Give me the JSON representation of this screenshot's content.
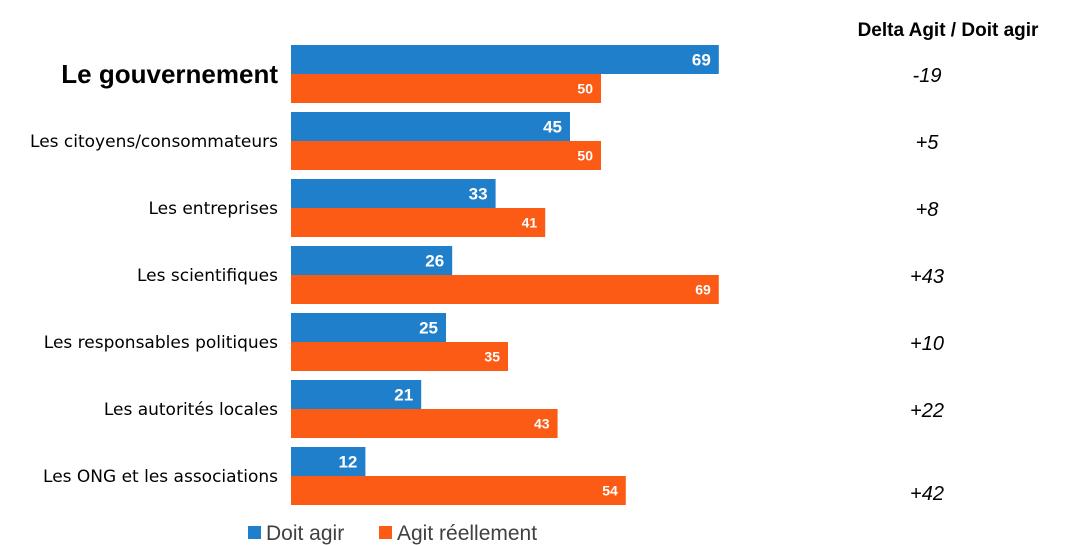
{
  "chart_data": {
    "type": "bar",
    "orientation": "horizontal",
    "categories": [
      "Le gouvernement",
      "Les citoyens/consommateurs",
      "Les entreprises",
      "Les scientifiques",
      "Les responsables politiques",
      "Les autorités locales",
      "Les ONG et les associations"
    ],
    "highlighted_category": "Le gouvernement",
    "series": [
      {
        "name": "Doit agir",
        "color": "#1f7fcb",
        "values": [
          69,
          45,
          33,
          26,
          25,
          21,
          12
        ]
      },
      {
        "name": "Agit réellement",
        "color": "#fc5b15",
        "values": [
          50,
          50,
          41,
          69,
          35,
          43,
          54
        ]
      }
    ],
    "delta_column": {
      "title": "Delta Agit / Doit agir",
      "values": [
        "-19",
        "+5",
        "+8",
        "+43",
        "+10",
        "+22",
        "+42"
      ]
    },
    "xlim": [
      0,
      69
    ],
    "grid": false,
    "legend_position": "bottom"
  }
}
